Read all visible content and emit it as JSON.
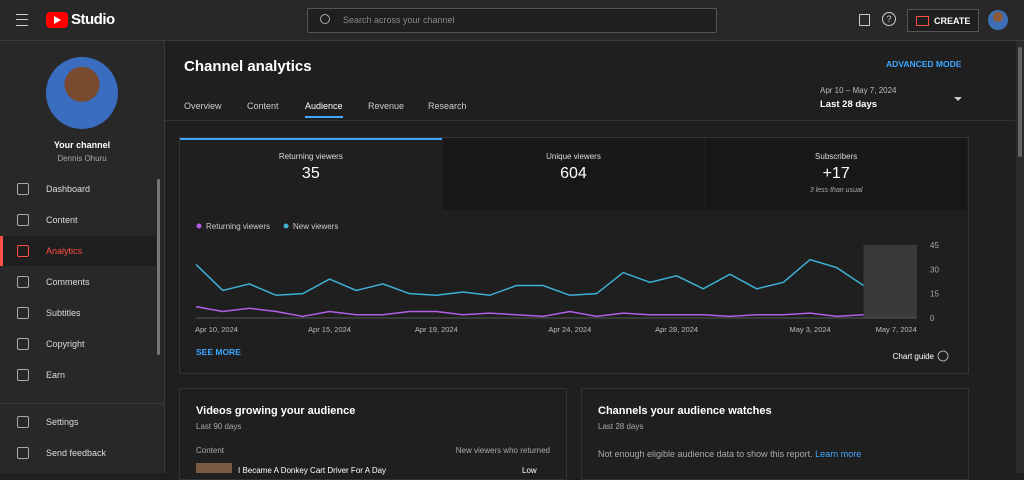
{
  "header": {
    "logo": "Studio",
    "search_placeholder": "Search across your channel",
    "create": "CREATE"
  },
  "sidebar": {
    "channel_title": "Your channel",
    "channel_name": "Dennis Ohuru",
    "items": [
      "Dashboard",
      "Content",
      "Analytics",
      "Comments",
      "Subtitles",
      "Copyright",
      "Earn"
    ],
    "active": 2,
    "bottom": [
      "Settings",
      "Send feedback"
    ]
  },
  "page": {
    "title": "Channel analytics",
    "advanced": "ADVANCED MODE",
    "tabs": [
      "Overview",
      "Content",
      "Audience",
      "Revenue",
      "Research"
    ],
    "active_tab": 2,
    "date_range": "Apr 10 – May 7, 2024",
    "period": "Last 28 days"
  },
  "metrics": [
    {
      "label": "Returning viewers",
      "value": 35
    },
    {
      "label": "Unique viewers",
      "value": 604
    },
    {
      "label": "Subscribers",
      "value": "+17",
      "note": "3 less than usual"
    }
  ],
  "chart_data": {
    "type": "line",
    "categories": [
      "Apr 10, 2024",
      null,
      null,
      null,
      null,
      "Apr 15, 2024",
      null,
      null,
      null,
      "Apr 19, 2024",
      null,
      null,
      null,
      null,
      "Apr 24, 2024",
      null,
      null,
      null,
      "Apr 28, 2024",
      null,
      null,
      null,
      null,
      "May 3, 2024",
      null,
      null,
      null,
      "May 7, 2024"
    ],
    "series": [
      {
        "name": "Returning viewers",
        "color": "#b35ee8",
        "values": [
          7,
          4,
          6,
          4,
          1,
          4,
          2,
          2,
          4,
          4,
          2,
          3,
          2,
          1,
          4,
          1,
          3,
          2,
          2,
          2,
          1,
          2,
          2,
          3,
          1,
          2,
          null,
          null
        ]
      },
      {
        "name": "New viewers",
        "color": "#3fb0d6",
        "values": [
          33,
          17,
          21,
          14,
          15,
          24,
          17,
          21,
          15,
          14,
          16,
          14,
          20,
          20,
          14,
          15,
          28,
          22,
          26,
          18,
          27,
          18,
          22,
          36,
          31,
          20,
          null,
          null
        ]
      }
    ],
    "ylim": [
      0,
      45
    ],
    "yticks": [
      0,
      15,
      30,
      45
    ],
    "grid": false,
    "see_more": "SEE MORE",
    "chart_guide": "Chart guide"
  },
  "cards": [
    {
      "title": "Videos growing your audience",
      "subtitle": "Last 90 days",
      "col1": "Content",
      "col2": "New viewers who returned",
      "row_title": "I Became A Donkey Cart Driver For A Day",
      "row_value": "Low"
    },
    {
      "title": "Channels your audience watches",
      "subtitle": "Last 28 days",
      "message": "Not enough eligible audience data to show this report.",
      "link": "Learn more"
    }
  ]
}
